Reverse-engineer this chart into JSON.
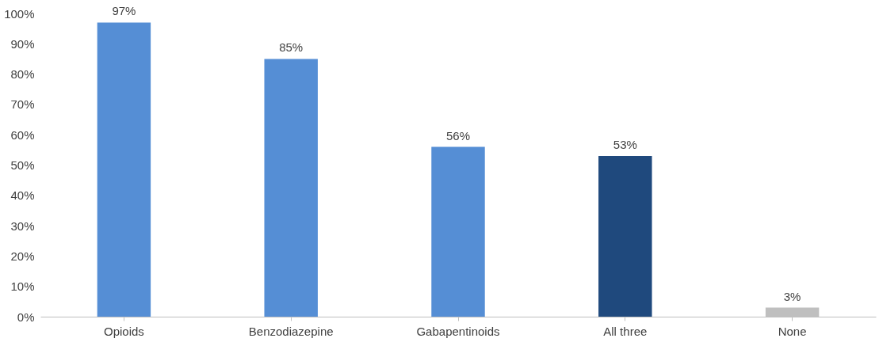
{
  "chart_data": {
    "type": "bar",
    "categories": [
      "Opioids",
      "Benzodiazepine",
      "Gabapentinoids",
      "All three",
      "None"
    ],
    "values": [
      97,
      85,
      56,
      53,
      3
    ],
    "colors": [
      "#558ed5",
      "#558ed5",
      "#558ed5",
      "#1f497d",
      "#bfbfbf"
    ],
    "value_labels": [
      "97%",
      "85%",
      "56%",
      "53%",
      "3%"
    ],
    "ylim": [
      0,
      100
    ],
    "yticks": [
      {
        "value": 0,
        "label": "0%"
      },
      {
        "value": 10,
        "label": "10%"
      },
      {
        "value": 20,
        "label": "20%"
      },
      {
        "value": 30,
        "label": "30%"
      },
      {
        "value": 40,
        "label": "40%"
      },
      {
        "value": 50,
        "label": "50%"
      },
      {
        "value": 60,
        "label": "60%"
      },
      {
        "value": 70,
        "label": "70%"
      },
      {
        "value": 80,
        "label": "80%"
      },
      {
        "value": 90,
        "label": "90%"
      },
      {
        "value": 100,
        "label": "100%"
      }
    ],
    "grid": false
  }
}
